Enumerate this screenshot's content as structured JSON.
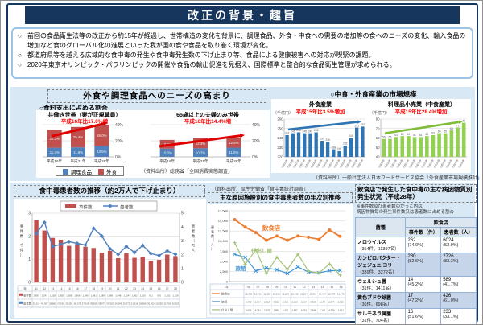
{
  "title": "改正の背景・趣旨",
  "intro": {
    "bullets": [
      "前回の食品衛生法等の改正から約15年が経過し、世帯構造の変化を背景に、調理食品、外食・中食への需要の増加等の食へのニーズの変化、輸入食品の増加など食のグローバル化の進展といった我が国の食や食品を取り巻く環境が変化。",
      "都道府県等を越える広域的な食中毒の発生や食中毒発生数の下げ止まり等、食品による健康被害への対応が喫緊の課題。",
      "2020年東京オリンピック・パラリンピックの開催や食品の輸出促進を見据え、国際標準と整合的な食品衛生管理が求められる。"
    ]
  },
  "section1": {
    "heading": "外食や調理食品へのニーズの高まり",
    "left_label": "○食料支出に占める割合",
    "right_label": "○中食・外食産業の市場規模",
    "source_left": "（資料出所）総務省「全国消費実態調査」",
    "source_right": "（資料出所）一般社団法人日本フードサービス協会「外食産業市場規模推計」"
  },
  "section2": {
    "left_heading": "食中毒患者数の推移（約2万人で下げ止まり）",
    "mid_source": "（資料出所）厚生労働省「食中毒統計調査」",
    "mid_heading": "主な原因施設別の食中毒患者数の年次別推移",
    "right": {
      "heading": "飲食店で発生した食中毒の主な病因物質別発生状況（平成28年）",
      "note1": "※事件数及び患者数のかっこ内は、",
      "note2": "病因物質毎の発生事件数又は患者数に占める割合",
      "table": {
        "col_header": "菌種",
        "group_header": "飲食店",
        "sub_headers": [
          "事件数（件）",
          "患者数（人）"
        ],
        "rows": [
          {
            "name": "ノロウイルス",
            "total": "（354件、11397名）",
            "cases": "262",
            "cases_pct": "(74.0%)",
            "patients": "6024",
            "patients_pct": "(52.9%)"
          },
          {
            "name": "カンピロバクター・ジェジュニ/コリ",
            "total": "（339件、3272名）",
            "cases": "280",
            "cases_pct": "(82.6%)",
            "patients": "2726",
            "patients_pct": "(83.3%)"
          },
          {
            "name": "ウェルシュ菌",
            "total": "（31件、1411名）",
            "cases": "14",
            "cases_pct": "(45.2%)",
            "patients": "589",
            "patients_pct": "(41.7%)"
          },
          {
            "name": "黄色ブドウ球菌",
            "total": "（36件、698名）",
            "cases": "17",
            "cases_pct": "(47.2%)",
            "patients": "426",
            "patients_pct": "(61.0%)"
          },
          {
            "name": "サルモネラ属菌",
            "total": "（31件、704名）",
            "cases": "16",
            "cases_pct": "(51.6%)",
            "patients": "233",
            "patients_pct": "(33.1%)"
          }
        ]
      }
    }
  },
  "chart_data": [
    {
      "type": "bar",
      "stacked": true,
      "title": "共働き世帯（妻が正規職員）",
      "annotation": "平成16年比17.0%増",
      "categories": [
        "平成16年",
        "平成21年",
        "平成26年"
      ],
      "series": [
        {
          "name": "調理食品",
          "color": "#4f81bd",
          "values": [
            11.4,
            11.8,
            13.5
          ]
        },
        {
          "name": "外食",
          "color": "#c0504d",
          "values": [
            22.3,
            25.4,
            26.0
          ]
        }
      ],
      "ylim": [
        0,
        40
      ],
      "yticks": [
        "0%",
        "20%",
        "40%"
      ]
    },
    {
      "type": "bar",
      "stacked": true,
      "title": "65歳以上の夫婦のみ世帯",
      "annotation": "平成16年比14.4%増",
      "categories": [
        "平成16年",
        "平成21年",
        "平成26年"
      ],
      "series": [
        {
          "name": "調理食品",
          "color": "#4f81bd",
          "values": [
            10.3,
            10.7,
            11.5
          ]
        },
        {
          "name": "外食",
          "color": "#c0504d",
          "values": [
            10.8,
            12.3,
            12.6
          ]
        }
      ],
      "ylim": [
        0,
        40
      ],
      "yticks": [
        "0%",
        "20%",
        "40%"
      ]
    },
    {
      "type": "bar",
      "title": "外食産業",
      "annotation": "平成15年比3.5%増加",
      "unit": "（千億円）",
      "color": "#2e75b6",
      "categories": [
        "平成15年",
        "平成16年",
        "平成17年",
        "平成18年",
        "平成19年",
        "平成20年",
        "平成21年",
        "平成22年",
        "平成23年",
        "平成24年",
        "平成25年",
        "平成26年",
        "平成27年",
        "平成28年"
      ],
      "values": [
        243,
        245,
        246,
        245,
        245,
        246,
        237,
        236,
        228,
        226,
        232,
        240,
        251,
        252
      ],
      "ylim": [
        220,
        260
      ]
    },
    {
      "type": "bar",
      "title": "料理品小売業（中食産業）",
      "annotation": "平成15年比28.4%増加",
      "unit": "（千億円）",
      "color": "#92d050",
      "categories": [
        "平成15年",
        "平成16年",
        "平成17年",
        "平成18年",
        "平成19年",
        "平成20年",
        "平成21年",
        "平成22年",
        "平成23年",
        "平成24年",
        "平成25年",
        "平成26年",
        "平成27年",
        "平成28年"
      ],
      "values": [
        59,
        59,
        61,
        62,
        62,
        61,
        61,
        62,
        63,
        65,
        65,
        68,
        71,
        76
      ],
      "ylim": [
        40,
        80
      ]
    },
    {
      "type": "bar+line",
      "title": "食中毒患者数の推移",
      "axis_left": "事件数（千件）",
      "axis_right": "患者数（万人）",
      "ylim_left": [
        0,
        3
      ],
      "ylim_right": [
        0,
        5
      ],
      "bars_name": "事件数",
      "line_name": "患者数",
      "bar_color": "#c0504d",
      "line_color": "#4f81bd",
      "categories": [
        "11",
        "12",
        "13",
        "14",
        "15",
        "16",
        "17",
        "18",
        "19",
        "20",
        "21",
        "22",
        "23",
        "24",
        "25",
        "26",
        "27",
        "28"
      ],
      "bars": [
        2.697,
        2.247,
        1.928,
        1.85,
        1.585,
        1.666,
        1.545,
        1.491,
        1.289,
        1.369,
        1.048,
        1.254,
        1.062,
        1.1,
        0.931,
        0.976,
        1.202,
        1.139
      ],
      "line": [
        3.52,
        4.33,
        2.59,
        2.76,
        2.94,
        2.82,
        2.7,
        3.9,
        3.35,
        2.43,
        2.02,
        2.6,
        2.16,
        2.67,
        2.08,
        1.94,
        2.27,
        2.03
      ],
      "table": {
        "year_label": "年",
        "rows": [
          {
            "label": "事件数",
            "values": [
              "2,697",
              "2,247",
              "1,928",
              "1,850",
              "1,585",
              "1,666",
              "1,545",
              "1,491",
              "1,289",
              "1,369",
              "1,048",
              "1,254",
              "1,062",
              "1,100",
              "931",
              "976",
              "1,202",
              "1,139"
            ]
          },
          {
            "label": "患者数",
            "values": [
              "35,214",
              "43,307",
              "25,862",
              "27,629",
              "29,355",
              "28,175",
              "27,019",
              "39,026",
              "33,477",
              "24,303",
              "20,249",
              "25,972",
              "21,616",
              "26,699",
              "20,802",
              "19,355",
              "22,718",
              "20,252"
            ]
          }
        ]
      }
    },
    {
      "type": "line",
      "title": "主な原因施設別の食中毒患者数の年次別推移",
      "ylabel": "患者数（人）",
      "ylim": [
        0,
        17500
      ],
      "ytick_step": 2500,
      "year_label": "（年）",
      "categories": [
        "'06",
        "'07",
        "'08",
        "'09",
        "'10",
        "'11",
        "'12",
        "'13",
        "'14",
        "'15",
        "'16"
      ],
      "series": [
        {
          "name": "飲食店",
          "color": "#ed7d31",
          "marker": "circle",
          "values": [
            15306,
            13461,
            12101,
            10218,
            11260,
            10216,
            11264,
            10964,
            10424,
            12734,
            11176
          ]
        },
        {
          "name": "旅館",
          "color": "#4096d8",
          "marker": "x",
          "values": [
            6750,
            5964,
            2615,
            3351,
            2916,
            2019,
            3604,
            2336,
            2148,
            2674,
            2750
          ]
        },
        {
          "name": "仕出し屋",
          "color": "#a3c178",
          "marker": "plus",
          "values": [
            9632,
            4241,
            7875,
            1981,
            6022,
            2997,
            6761,
            2548,
            2118,
            4330,
            1621
          ]
        }
      ]
    }
  ]
}
